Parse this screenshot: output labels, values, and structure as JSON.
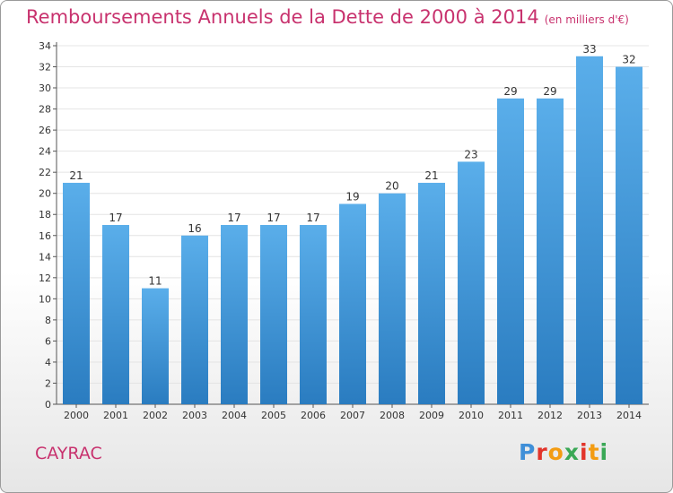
{
  "header": {
    "title": "Remboursements Annuels de la Dette de 2000 à 2014",
    "unit": "(en milliers d'€)"
  },
  "commune": "CAYRAC",
  "logo": {
    "text": "Proxiti",
    "letter_colors": [
      "#3f8fd8",
      "#e2342a",
      "#f39c12",
      "#3aa856",
      "#e2342a",
      "#f39c12",
      "#3aa856"
    ]
  },
  "colors": {
    "bar_light": "#5aaeea",
    "bar_dark": "#2a7cc0",
    "title": "#c8326e",
    "grid": "#e4e4e4"
  },
  "chart_data": {
    "type": "bar",
    "title": "Remboursements Annuels de la Dette de 2000 à 2014",
    "subtitle": "(en milliers d'€)",
    "xlabel": "",
    "ylabel": "",
    "categories": [
      "2000",
      "2001",
      "2002",
      "2003",
      "2004",
      "2005",
      "2006",
      "2007",
      "2008",
      "2009",
      "2010",
      "2011",
      "2012",
      "2013",
      "2014"
    ],
    "values": [
      21,
      17,
      11,
      16,
      17,
      17,
      17,
      19,
      20,
      21,
      23,
      29,
      29,
      33,
      32
    ],
    "ylim": [
      0,
      34
    ],
    "yticks": [
      0,
      2,
      4,
      6,
      8,
      10,
      12,
      14,
      16,
      18,
      20,
      22,
      24,
      26,
      28,
      30,
      32,
      34
    ],
    "grid": true,
    "legend": "none"
  }
}
